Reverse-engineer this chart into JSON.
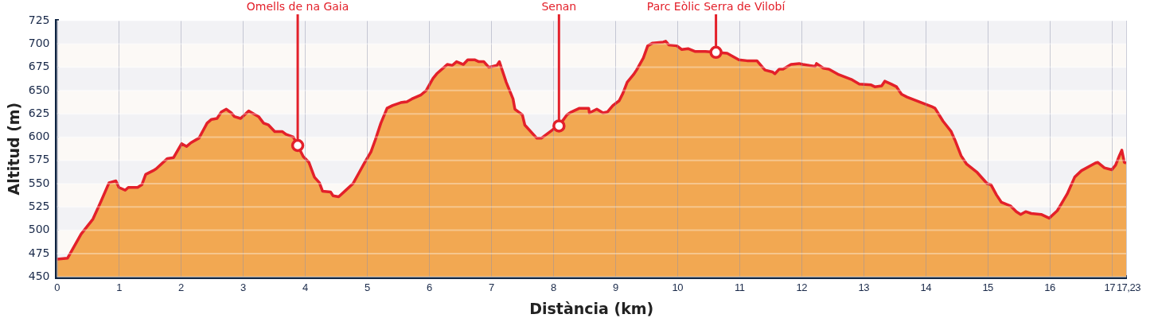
{
  "chart_data": {
    "type": "area",
    "xlabel": "Distància (km)",
    "ylabel": "Altitud (m)",
    "x": [
      0,
      0.17,
      0.39,
      0.58,
      0.71,
      0.84,
      0.95,
      1.0,
      1.1,
      1.15,
      1.3,
      1.37,
      1.43,
      1.55,
      1.6,
      1.78,
      1.88,
      2.01,
      2.09,
      2.16,
      2.29,
      2.42,
      2.49,
      2.58,
      2.65,
      2.73,
      2.81,
      2.86,
      2.96,
      3.09,
      3.25,
      3.33,
      3.41,
      3.51,
      3.63,
      3.69,
      3.81,
      3.88,
      3.97,
      4.06,
      4.15,
      4.23,
      4.28,
      4.41,
      4.45,
      4.54,
      4.64,
      4.77,
      4.87,
      4.97,
      5.06,
      5.13,
      5.22,
      5.32,
      5.41,
      5.54,
      5.64,
      5.72,
      5.86,
      5.95,
      6.06,
      6.12,
      6.29,
      6.37,
      6.44,
      6.55,
      6.62,
      6.73,
      6.8,
      6.88,
      6.96,
      7.09,
      7.13,
      7.24,
      7.35,
      7.38,
      7.5,
      7.54,
      7.73,
      7.81,
      7.99,
      8.09,
      8.22,
      8.29,
      8.42,
      8.57,
      8.58,
      8.7,
      8.8,
      8.87,
      8.96,
      9.06,
      9.12,
      9.19,
      9.29,
      9.34,
      9.45,
      9.52,
      9.6,
      9.77,
      9.81,
      9.86,
      9.99,
      10.07,
      10.17,
      10.28,
      10.45,
      10.62,
      10.8,
      10.99,
      11.12,
      11.28,
      11.41,
      11.53,
      11.57,
      11.64,
      11.7,
      11.83,
      11.96,
      12.02,
      12.22,
      12.24,
      12.35,
      12.44,
      12.6,
      12.8,
      12.93,
      13.12,
      13.18,
      13.29,
      13.34,
      13.44,
      13.53,
      13.61,
      13.7,
      13.89,
      14.09,
      14.15,
      14.28,
      14.41,
      14.47,
      14.57,
      14.66,
      14.83,
      14.99,
      15.05,
      15.14,
      15.22,
      15.37,
      15.46,
      15.53,
      15.61,
      15.7,
      15.86,
      15.99,
      16.12,
      16.28,
      16.4,
      16.51,
      16.73,
      16.77,
      16.88,
      17.0,
      17.06,
      17.12,
      17.16,
      17.2,
      17.23
    ],
    "series": [
      {
        "color": "#e3202a",
        "values": [
          469,
          470,
          496,
          512,
          531,
          551,
          553,
          546,
          543,
          546,
          546,
          549,
          560,
          564,
          566,
          577,
          578,
          593,
          590,
          594,
          599,
          615,
          619,
          620,
          627,
          630,
          626,
          622,
          620,
          628,
          622,
          615,
          613,
          606,
          606,
          603,
          600,
          591,
          579,
          573,
          557,
          551,
          542,
          541,
          537,
          536,
          542,
          550,
          562,
          574,
          584,
          597,
          615,
          631,
          634,
          637,
          638,
          641,
          645,
          650,
          663,
          668,
          678,
          677,
          681,
          678,
          683,
          683,
          681,
          681,
          675,
          677,
          681,
          659,
          641,
          630,
          624,
          613,
          599,
          599,
          608,
          612,
          624,
          627,
          631,
          631,
          626,
          630,
          626,
          627,
          634,
          639,
          647,
          659,
          667,
          672,
          685,
          698,
          701,
          702,
          703,
          699,
          698,
          694,
          695,
          692,
          692,
          691,
          690,
          683,
          682,
          682,
          672,
          670,
          668,
          673,
          673,
          678,
          679,
          678,
          676,
          679,
          674,
          673,
          667,
          662,
          657,
          656,
          654,
          655,
          660,
          657,
          654,
          646,
          643,
          638,
          633,
          631,
          617,
          606,
          597,
          580,
          571,
          562,
          550,
          549,
          538,
          530,
          526,
          520,
          517,
          520,
          518,
          517,
          513,
          521,
          539,
          557,
          564,
          572,
          573,
          567,
          565,
          570,
          580,
          586,
          573,
          572
        ]
      }
    ],
    "annotations": [
      {
        "text": "Omells de na Gaia",
        "x": 3.88,
        "y": 591
      },
      {
        "text": "Senan",
        "x": 8.09,
        "y": 612
      },
      {
        "text": "Parc Eòlic Serra de Vilobí",
        "x": 10.62,
        "y": 691
      }
    ],
    "xlim": [
      0,
      17.23
    ],
    "xticks": [
      0,
      1,
      2,
      3,
      4,
      5,
      6,
      7,
      8,
      9,
      10,
      11,
      12,
      13,
      14,
      15,
      16,
      17,
      {
        "value": 17.23,
        "label": "17,23"
      }
    ],
    "ylim": [
      450,
      725
    ],
    "yticks": [
      450,
      475,
      500,
      525,
      550,
      575,
      600,
      625,
      650,
      675,
      700,
      725
    ],
    "grid": true,
    "legend": false
  }
}
